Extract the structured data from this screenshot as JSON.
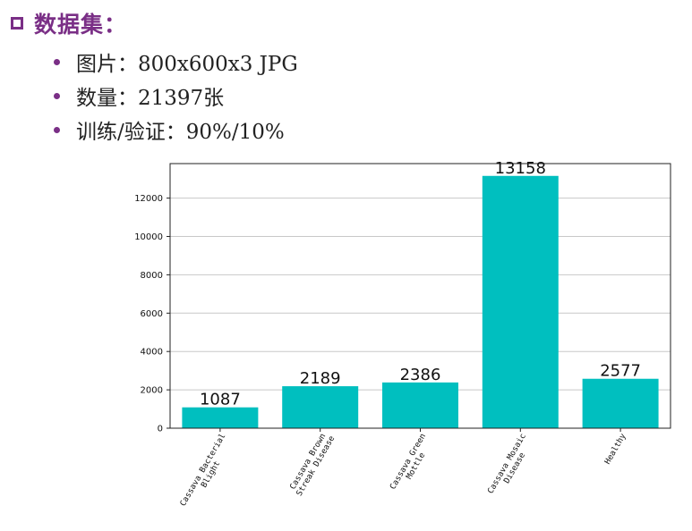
{
  "heading": "数据集：",
  "bullets": [
    "图片：800x600x3 JPG",
    "数量：21397张",
    "训练/验证：90%/10%"
  ],
  "colors": {
    "accent": "#7a2f86",
    "bar": "#00bfbf"
  },
  "chart_data": {
    "type": "bar",
    "categories": [
      "Cassava Bacterial Blight",
      "Cassava Brown Streak Disease",
      "Cassava Green Mottle",
      "Cassava Mosaic Disease",
      "Healthy"
    ],
    "category_label_lines": [
      [
        "Cassava Bacterial",
        "Blight"
      ],
      [
        "Cassava Brown",
        "Streak Disease"
      ],
      [
        "Cassava Green",
        "Mottle"
      ],
      [
        "Cassava Mosaic",
        "Disease"
      ],
      [
        "Healthy"
      ]
    ],
    "values": [
      1087,
      2189,
      2386,
      13158,
      2577
    ],
    "title": "",
    "xlabel": "",
    "ylabel": "",
    "ylim": [
      0,
      13800
    ],
    "yticks": [
      0,
      2000,
      4000,
      6000,
      8000,
      10000,
      12000
    ],
    "grid": "horizontal",
    "data_labels": true
  }
}
